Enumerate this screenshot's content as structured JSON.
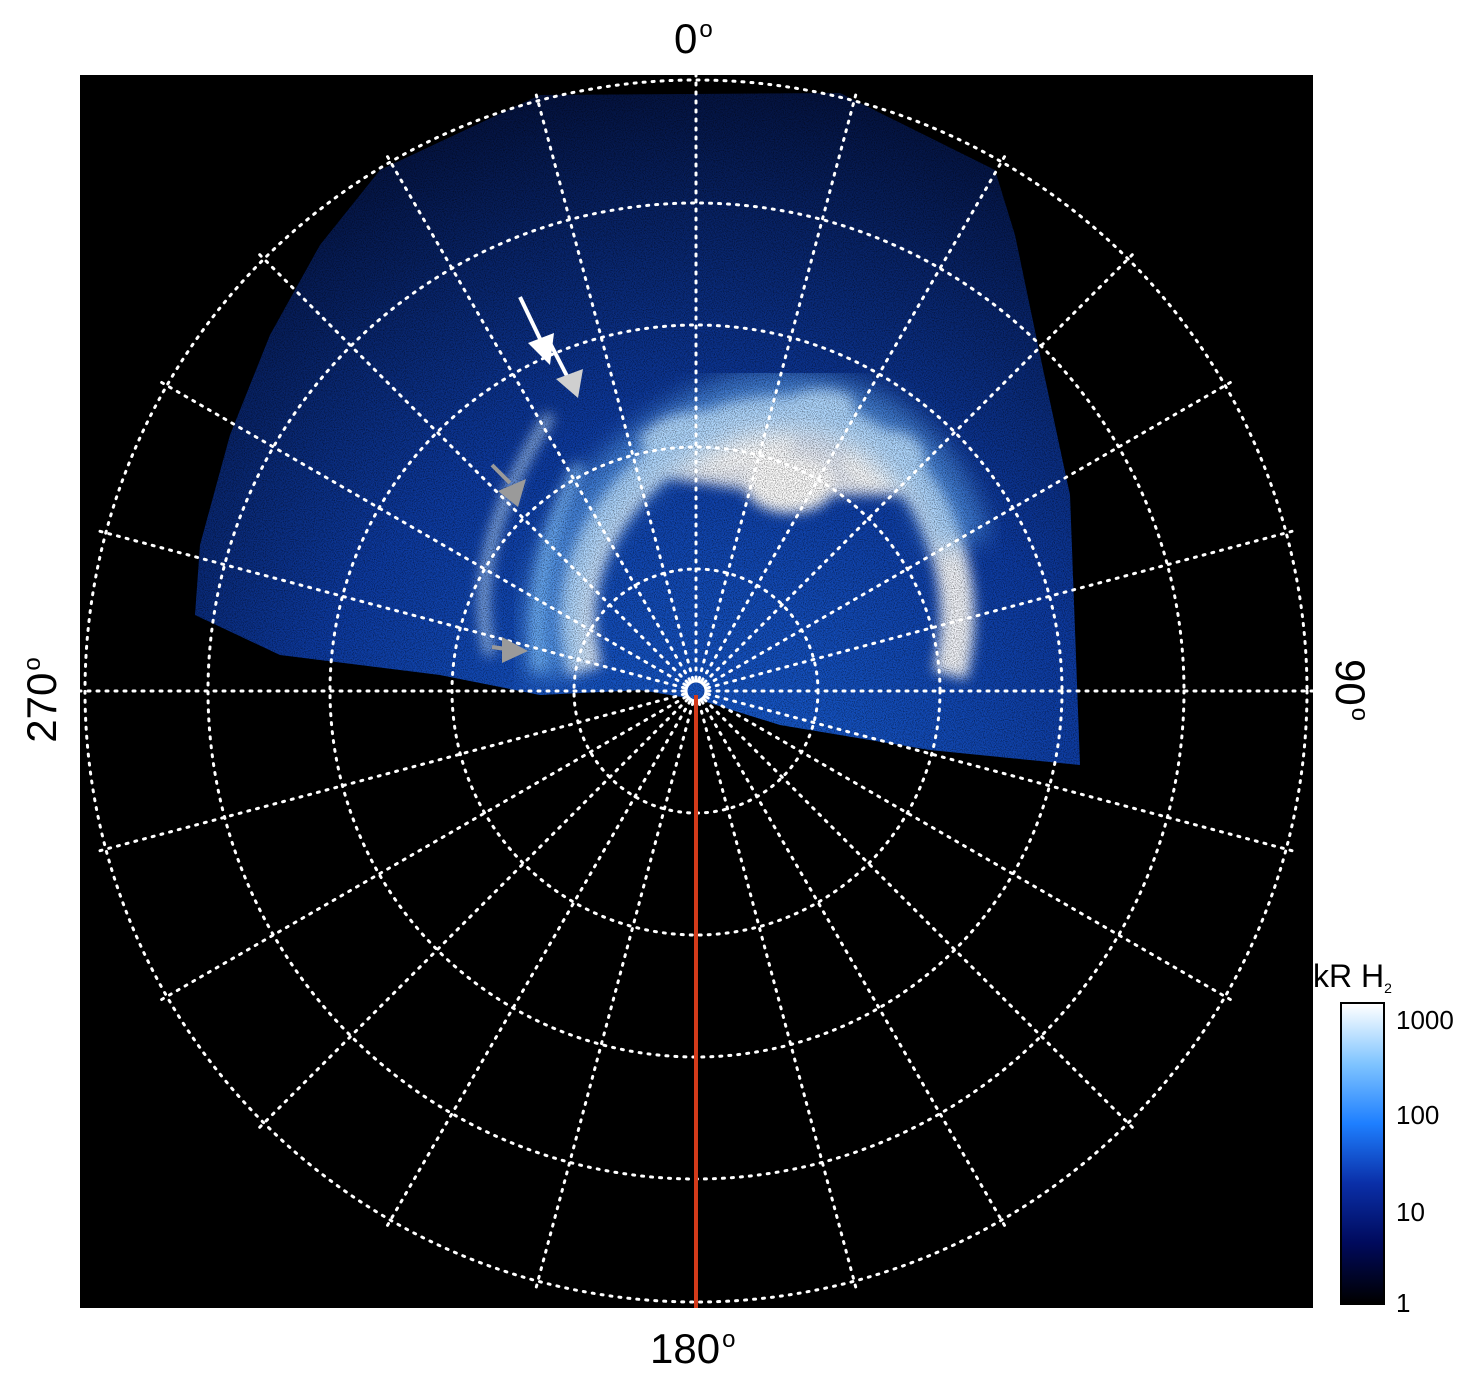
{
  "axis_labels": {
    "top": "0",
    "right": "90",
    "bottom": "180",
    "left": "270",
    "degree_symbol": "o"
  },
  "colorbar": {
    "title_main": "kR H",
    "title_sub": "2",
    "ticks": [
      "1000",
      "100",
      "10",
      "1"
    ],
    "colors": [
      "#000000",
      "#000a5c",
      "#0a2fa8",
      "#1e7fff",
      "#7fc4ff",
      "#ffffff"
    ]
  },
  "markers": {
    "white_arrow_color": "#ffffff",
    "gray_arrow_color": "#9a9a9a",
    "meridian_color": "#d23a1a"
  }
}
